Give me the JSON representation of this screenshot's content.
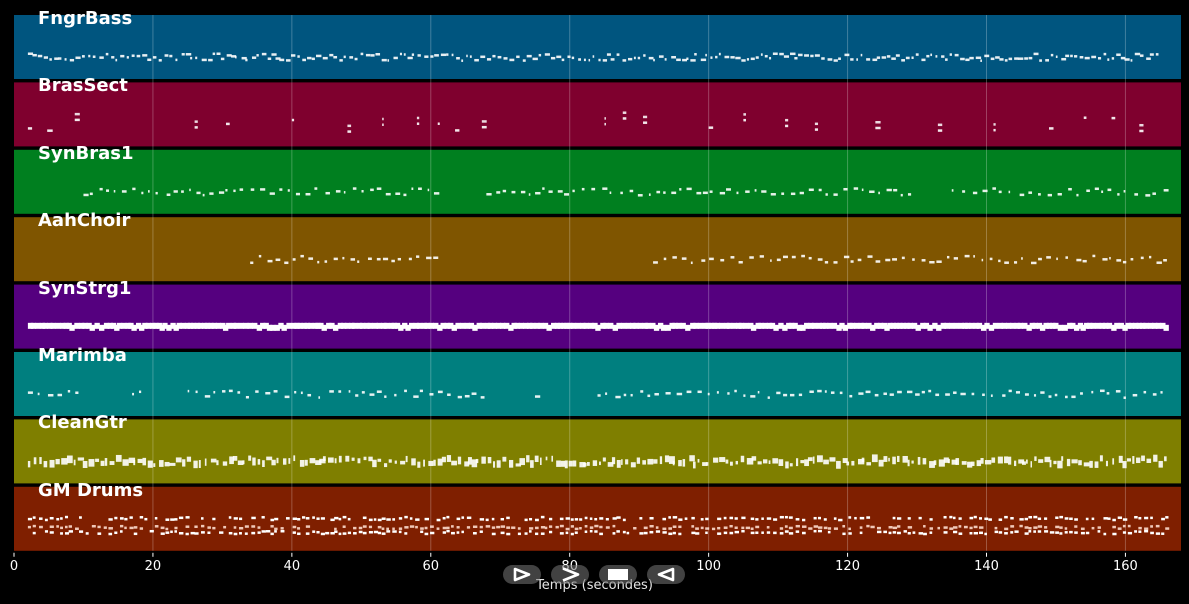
{
  "chart_data": {
    "type": "piano-roll",
    "xlabel": "Temps (secondes)",
    "xlim": [
      0,
      168
    ],
    "x_ticks": [
      0,
      20,
      40,
      60,
      80,
      100,
      120,
      140,
      160
    ],
    "grid": true,
    "tracks": [
      {
        "name": "FngrBass",
        "color": "#00557f",
        "active": [
          [
            2,
            165
          ]
        ],
        "density": "dense",
        "note_size": "small"
      },
      {
        "name": "BrasSect",
        "color": "#7f002e",
        "active": [
          [
            2,
            10
          ],
          [
            26,
            33
          ],
          [
            40,
            43
          ],
          [
            48,
            50
          ],
          [
            53,
            56
          ],
          [
            58,
            60
          ],
          [
            61,
            68
          ],
          [
            85,
            92
          ],
          [
            100,
            102
          ],
          [
            105,
            108
          ],
          [
            111,
            117
          ],
          [
            124,
            126
          ],
          [
            133,
            135
          ],
          [
            141,
            143
          ],
          [
            149,
            152
          ],
          [
            154,
            156
          ],
          [
            158,
            160
          ],
          [
            162,
            166
          ]
        ],
        "density": "sparse",
        "note_size": "small"
      },
      {
        "name": "SynBras1",
        "color": "#007f1f",
        "active": [
          [
            10,
            61
          ],
          [
            68,
            130
          ],
          [
            135,
            166
          ]
        ],
        "density": "medium",
        "note_size": "small"
      },
      {
        "name": "AahChoir",
        "color": "#7f5500",
        "active": [
          [
            34,
            61
          ],
          [
            92,
            166
          ]
        ],
        "density": "medium",
        "note_size": "small"
      },
      {
        "name": "SynStrg1",
        "color": "#55007f",
        "active": [
          [
            2,
            166
          ]
        ],
        "density": "solid",
        "note_size": "large"
      },
      {
        "name": "Marimba",
        "color": "#007f7f",
        "active": [
          [
            2,
            10
          ],
          [
            17,
            18
          ],
          [
            25,
            68
          ],
          [
            75,
            76
          ],
          [
            84,
            166
          ]
        ],
        "density": "medium",
        "note_size": "small"
      },
      {
        "name": "CleanGtr",
        "color": "#7f7f00",
        "active": [
          [
            2,
            166
          ]
        ],
        "density": "dense",
        "note_size": "small"
      },
      {
        "name": "GM Drums",
        "color": "#7f1f00",
        "active": [
          [
            2,
            166
          ]
        ],
        "density": "dense",
        "note_size": "small"
      }
    ]
  },
  "controls": [
    {
      "name": "play-button",
      "icon": "play-icon"
    },
    {
      "name": "next-button",
      "icon": "chevron-right-icon"
    },
    {
      "name": "stop-button",
      "icon": "stop-icon"
    },
    {
      "name": "back-button",
      "icon": "rewind-icon"
    }
  ]
}
